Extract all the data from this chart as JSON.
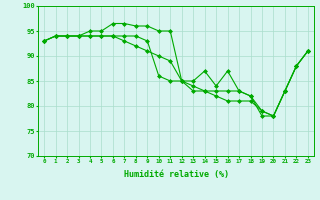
{
  "title": "",
  "xlabel": "Humidité relative (%)",
  "ylabel": "",
  "bg_color": "#d8f5f0",
  "grid_color": "#aaddcc",
  "line_color": "#00aa00",
  "ylim": [
    70,
    100
  ],
  "xlim": [
    -0.5,
    23.5
  ],
  "yticks": [
    70,
    75,
    80,
    85,
    90,
    95,
    100
  ],
  "xticks": [
    0,
    1,
    2,
    3,
    4,
    5,
    6,
    7,
    8,
    9,
    10,
    11,
    12,
    13,
    14,
    15,
    16,
    17,
    18,
    19,
    20,
    21,
    22,
    23
  ],
  "series1": [
    93,
    94,
    94,
    94,
    95,
    95,
    96.5,
    96.5,
    96,
    96,
    95,
    95,
    85,
    85,
    87,
    84,
    87,
    83,
    82,
    78,
    78,
    83,
    88,
    91
  ],
  "series2": [
    93,
    94,
    94,
    94,
    94,
    94,
    94,
    94,
    94,
    93,
    86,
    85,
    85,
    84,
    83,
    82,
    81,
    81,
    81,
    79,
    78,
    83,
    88,
    91
  ],
  "series3": [
    93,
    94,
    94,
    94,
    94,
    94,
    94,
    93,
    92,
    91,
    90,
    89,
    85,
    83,
    83,
    83,
    83,
    83,
    82,
    79,
    78,
    83,
    88,
    91
  ]
}
